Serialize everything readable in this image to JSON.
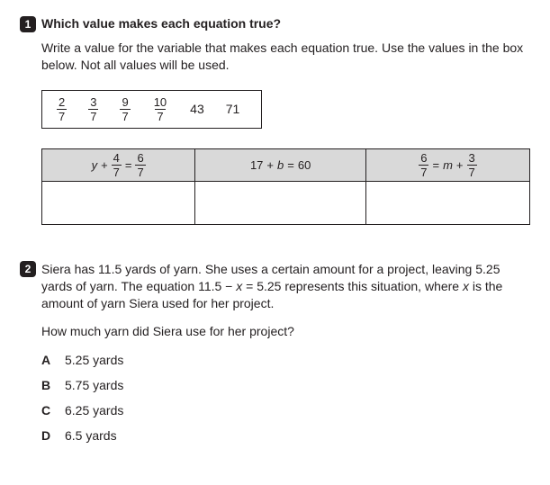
{
  "q1": {
    "number": "1",
    "prompt": "Which value makes each equation true?",
    "instructions": "Write a value for the variable that makes each equation true. Use the values in the box below. Not all values will be used.",
    "value_box": {
      "fractions": [
        {
          "n": "2",
          "d": "7"
        },
        {
          "n": "3",
          "d": "7"
        },
        {
          "n": "9",
          "d": "7"
        },
        {
          "n": "10",
          "d": "7"
        }
      ],
      "plain": [
        "43",
        "71"
      ]
    },
    "equations": {
      "eq1": {
        "lhs_var": "y",
        "op1": "+",
        "f1n": "4",
        "f1d": "7",
        "eq": "=",
        "f2n": "6",
        "f2d": "7"
      },
      "eq2": {
        "text": "17 + b = 60",
        "lhs": "17",
        "op": "+",
        "var": "b",
        "eq": "=",
        "rhs": "60"
      },
      "eq3": {
        "f1n": "6",
        "f1d": "7",
        "eq": "=",
        "var": "m",
        "op": "+",
        "f2n": "3",
        "f2d": "7"
      }
    }
  },
  "q2": {
    "number": "2",
    "instructions_pre": "Siera has 11.5 yards of yarn. She uses a certain amount for a project, leaving 5.25 yards of yarn. The equation 11.5 − ",
    "instructions_var": "x",
    "instructions_mid": " = 5.25 represents this situation, where ",
    "instructions_var2": "x",
    "instructions_post": " is the amount of yarn Siera used for her project.",
    "subquestion": "How much yarn did Siera use for her project?",
    "choices": [
      {
        "letter": "A",
        "text": "5.25 yards"
      },
      {
        "letter": "B",
        "text": "5.75 yards"
      },
      {
        "letter": "C",
        "text": "6.25 yards"
      },
      {
        "letter": "D",
        "text": "6.5 yards"
      }
    ]
  }
}
